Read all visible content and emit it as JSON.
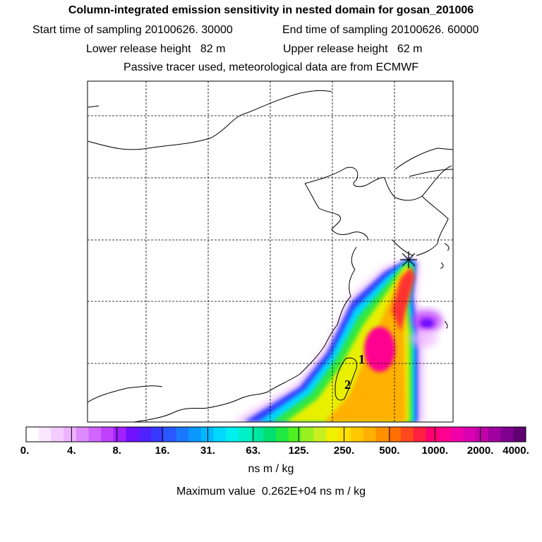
{
  "header": {
    "title": "Column-integrated emission sensitivity in nested domain for gosan_201006",
    "start_label": "Start time of sampling",
    "start_value": "20100626. 30000",
    "end_label": "End time of sampling",
    "end_value": "20100626. 60000",
    "lower_label": "Lower release height",
    "lower_value": "82 m",
    "upper_label": "Upper release height",
    "upper_value": "62 m",
    "tracer_note": "Passive tracer used, meteorological data are from ECMWF"
  },
  "map": {
    "markers": [
      {
        "label": "1"
      },
      {
        "label": "2"
      }
    ],
    "release_site": "star-icon"
  },
  "colorbar": {
    "tick_labels": [
      "0.",
      "4.",
      "8.",
      "16.",
      "31.",
      "63.",
      "125.",
      "250.",
      "500.",
      "1000.",
      "2000.",
      "4000."
    ],
    "colors": [
      "#ffffff",
      "#fbe6ff",
      "#f4ccff",
      "#eeb3ff",
      "#dc8cff",
      "#d066ff",
      "#c040ff",
      "#a020ff",
      "#7010ff",
      "#5020ff",
      "#3838ff",
      "#2858ff",
      "#1a78ff",
      "#0a98ff",
      "#00b8ff",
      "#00d8ff",
      "#00f0f0",
      "#00f0c8",
      "#00e8a0",
      "#00e070",
      "#20e840",
      "#50f020",
      "#98f020",
      "#c8f020",
      "#f0f000",
      "#ffe000",
      "#ffc800",
      "#ffb000",
      "#ff9000",
      "#ff7000",
      "#ff4820",
      "#ff2040",
      "#ff0070",
      "#ff0090",
      "#f000a8",
      "#d800b0",
      "#c000a8",
      "#a000a0",
      "#800090",
      "#600070"
    ],
    "units": "ns m / kg"
  },
  "footer": {
    "max_label": "Maximum value",
    "max_value": "0.262E+04 ns m / kg"
  }
}
